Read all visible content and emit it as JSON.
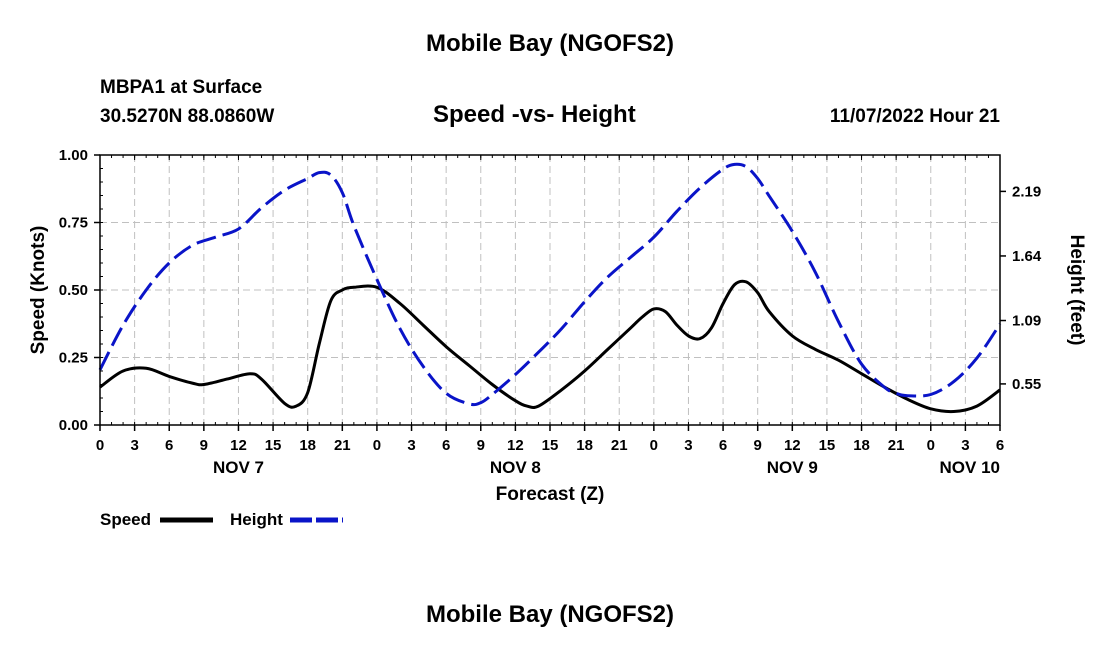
{
  "page": {
    "title_top": "Mobile Bay (NGOFS2)",
    "title_bottom": "Mobile Bay (NGOFS2)",
    "station": "MBPA1 at Surface",
    "coords": "30.5270N  88.0860W",
    "datetime": "11/07/2022 Hour 21"
  },
  "chart_data": {
    "type": "line",
    "title": "Speed -vs- Height",
    "xlabel": "Forecast (Z)",
    "ylabel_left": "Speed (Knots)",
    "ylabel_right": "Height (feet)",
    "x_unit": "hours since NOV 7 00Z",
    "xlim": [
      0,
      78
    ],
    "ylim_left": [
      0,
      1.0
    ],
    "ylim_right": [
      0.2,
      2.5
    ],
    "left_ticks": [
      "0.00",
      "0.25",
      "0.50",
      "0.75",
      "1.00"
    ],
    "right_ticks": [
      "0.55",
      "1.09",
      "1.64",
      "2.19"
    ],
    "x_ticks": [
      {
        "hour": 0,
        "label": "0"
      },
      {
        "hour": 3,
        "label": "3"
      },
      {
        "hour": 6,
        "label": "6"
      },
      {
        "hour": 9,
        "label": "9"
      },
      {
        "hour": 12,
        "label": "12"
      },
      {
        "hour": 15,
        "label": "15"
      },
      {
        "hour": 18,
        "label": "18"
      },
      {
        "hour": 21,
        "label": "21"
      },
      {
        "hour": 24,
        "label": "0"
      },
      {
        "hour": 27,
        "label": "3"
      },
      {
        "hour": 30,
        "label": "6"
      },
      {
        "hour": 33,
        "label": "9"
      },
      {
        "hour": 36,
        "label": "12"
      },
      {
        "hour": 39,
        "label": "15"
      },
      {
        "hour": 42,
        "label": "18"
      },
      {
        "hour": 45,
        "label": "21"
      },
      {
        "hour": 48,
        "label": "0"
      },
      {
        "hour": 51,
        "label": "3"
      },
      {
        "hour": 54,
        "label": "6"
      },
      {
        "hour": 57,
        "label": "9"
      },
      {
        "hour": 60,
        "label": "12"
      },
      {
        "hour": 63,
        "label": "15"
      },
      {
        "hour": 66,
        "label": "18"
      },
      {
        "hour": 69,
        "label": "21"
      },
      {
        "hour": 72,
        "label": "0"
      },
      {
        "hour": 75,
        "label": "3"
      },
      {
        "hour": 78,
        "label": "6"
      }
    ],
    "day_labels": [
      {
        "hour": 12,
        "label": "NOV 7"
      },
      {
        "hour": 36,
        "label": "NOV 8"
      },
      {
        "hour": 60,
        "label": "NOV 9"
      },
      {
        "hour": 78,
        "label": "NOV 10"
      }
    ],
    "series": [
      {
        "name": "Speed",
        "axis": "left",
        "color": "#000000",
        "style": "solid",
        "x": [
          0,
          2,
          4,
          6,
          8,
          9,
          11,
          13,
          14,
          16,
          17,
          18,
          19,
          20,
          21,
          22,
          24,
          26,
          28,
          30,
          32,
          34,
          36,
          37,
          38,
          40,
          42,
          44,
          46,
          47,
          48,
          49,
          50,
          51,
          52,
          53,
          54,
          55,
          56,
          57,
          58,
          60,
          62,
          64,
          66,
          68,
          70,
          72,
          74,
          76,
          78
        ],
        "y": [
          0.14,
          0.2,
          0.21,
          0.18,
          0.155,
          0.15,
          0.17,
          0.19,
          0.17,
          0.08,
          0.07,
          0.12,
          0.3,
          0.46,
          0.5,
          0.51,
          0.51,
          0.45,
          0.37,
          0.29,
          0.22,
          0.15,
          0.09,
          0.07,
          0.07,
          0.13,
          0.2,
          0.28,
          0.36,
          0.4,
          0.43,
          0.42,
          0.37,
          0.33,
          0.32,
          0.36,
          0.45,
          0.52,
          0.53,
          0.49,
          0.42,
          0.33,
          0.28,
          0.24,
          0.19,
          0.14,
          0.095,
          0.06,
          0.05,
          0.07,
          0.13
        ]
      },
      {
        "name": "Height",
        "axis": "right",
        "color": "#0a14c8",
        "style": "dashed",
        "x": [
          0,
          2,
          4,
          6,
          8,
          10,
          12,
          14,
          16,
          18,
          19,
          20,
          21,
          22,
          24,
          26,
          28,
          30,
          32,
          33,
          34,
          36,
          38,
          40,
          42,
          44,
          46,
          48,
          50,
          52,
          54,
          55,
          56,
          57,
          58,
          60,
          62,
          64,
          66,
          68,
          69,
          70,
          72,
          74,
          76,
          78
        ],
        "y": [
          0.67,
          1.05,
          1.35,
          1.58,
          1.73,
          1.8,
          1.87,
          2.05,
          2.2,
          2.3,
          2.35,
          2.33,
          2.18,
          1.9,
          1.44,
          1.02,
          0.7,
          0.47,
          0.38,
          0.39,
          0.46,
          0.63,
          0.82,
          1.02,
          1.25,
          1.46,
          1.63,
          1.8,
          2.02,
          2.22,
          2.38,
          2.42,
          2.4,
          2.3,
          2.15,
          1.85,
          1.5,
          1.08,
          0.72,
          0.52,
          0.47,
          0.45,
          0.46,
          0.57,
          0.77,
          1.06
        ]
      }
    ],
    "legend": [
      {
        "label": "Speed",
        "color": "#000000",
        "style": "solid"
      },
      {
        "label": "Height",
        "color": "#0a14c8",
        "style": "dashed"
      }
    ]
  }
}
